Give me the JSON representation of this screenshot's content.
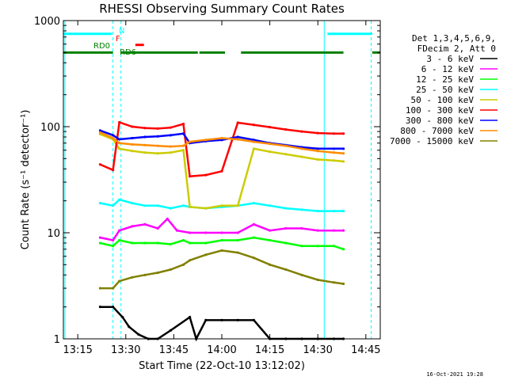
{
  "chart_data": {
    "type": "line",
    "title": "RHESSI Observing Summary Count Rates",
    "xlabel": "Start Time (22-Oct-10 13:12:02)",
    "ylabel": "Count Rate (s⁻¹ detector⁻¹)",
    "y_scale": "log",
    "ylim": [
      1,
      1000
    ],
    "xlim": [
      "13:10:30",
      "14:49:30"
    ],
    "x_ticks": [
      "13:15",
      "13:30",
      "13:45",
      "14:00",
      "14:15",
      "14:30",
      "14:45"
    ],
    "y_ticks": [
      "1",
      "10",
      "100",
      "1000"
    ],
    "footer_timestamp": "16-Oct-2021 19:28",
    "legend_header": [
      "Det 1,3,4,5,6,9,",
      "FDecim 2, Att 0"
    ],
    "grid": false,
    "series": [
      {
        "name": "3 - 6 keV",
        "color": "#000000",
        "x": [
          "13:22",
          "13:26",
          "13:29",
          "13:31",
          "13:34",
          "13:37",
          "13:40",
          "13:44",
          "13:50",
          "13:52",
          "13:55",
          "14:00",
          "14:05",
          "14:10",
          "14:15",
          "14:20",
          "14:25",
          "14:30",
          "14:35",
          "14:38"
        ],
        "y": [
          2.0,
          2.0,
          1.6,
          1.3,
          1.1,
          1.0,
          1.0,
          1.2,
          1.6,
          1.0,
          1.5,
          1.5,
          1.5,
          1.5,
          1.0,
          1.0,
          1.0,
          1.0,
          1.0,
          1.0
        ]
      },
      {
        "name": "6 - 12 keV",
        "color": "#ff00ff",
        "x": [
          "13:22",
          "13:26",
          "13:28",
          "13:32",
          "13:36",
          "13:40",
          "13:43",
          "13:46",
          "13:50",
          "13:55",
          "14:00",
          "14:05",
          "14:10",
          "14:15",
          "14:20",
          "14:25",
          "14:30",
          "14:35",
          "14:38"
        ],
        "y": [
          9.0,
          8.5,
          10.5,
          11.5,
          12.0,
          11.0,
          13.5,
          10.5,
          10.0,
          10.0,
          10.0,
          10.0,
          12.0,
          10.5,
          11.0,
          11.0,
          10.5,
          10.5,
          10.5
        ]
      },
      {
        "name": "12 - 25 keV",
        "color": "#00ff00",
        "x": [
          "13:22",
          "13:26",
          "13:28",
          "13:32",
          "13:36",
          "13:40",
          "13:44",
          "13:48",
          "13:50",
          "13:55",
          "14:00",
          "14:05",
          "14:10",
          "14:15",
          "14:20",
          "14:25",
          "14:30",
          "14:35",
          "14:38"
        ],
        "y": [
          8.0,
          7.5,
          8.5,
          8.0,
          8.0,
          8.0,
          7.8,
          8.5,
          8.0,
          8.0,
          8.5,
          8.5,
          9.0,
          8.5,
          8.0,
          7.5,
          7.5,
          7.5,
          7.0
        ]
      },
      {
        "name": "25 - 50 keV",
        "color": "#00ffff",
        "x": [
          "13:22",
          "13:26",
          "13:28",
          "13:32",
          "13:36",
          "13:40",
          "13:44",
          "13:48",
          "13:50",
          "13:55",
          "14:00",
          "14:05",
          "14:10",
          "14:15",
          "14:20",
          "14:25",
          "14:30",
          "14:35",
          "14:38"
        ],
        "y": [
          19,
          18,
          20.5,
          19,
          18,
          18,
          17,
          18,
          17.5,
          17,
          17.5,
          18,
          19,
          18,
          17,
          16.5,
          16,
          16,
          16
        ]
      },
      {
        "name": "50 - 100 keV",
        "color": "#cccc00",
        "x": [
          "13:22",
          "13:26",
          "13:28",
          "13:32",
          "13:36",
          "13:40",
          "13:44",
          "13:48",
          "13:50",
          "13:55",
          "14:00",
          "14:05",
          "14:10",
          "14:15",
          "14:20",
          "14:25",
          "14:30",
          "14:35",
          "14:38"
        ],
        "y": [
          85,
          76,
          62,
          59,
          57,
          56,
          57,
          60,
          17.5,
          17,
          18,
          18,
          62,
          58,
          55,
          52,
          49,
          48,
          47
        ]
      },
      {
        "name": "100 - 300 keV",
        "color": "#ff0000",
        "x": [
          "13:22",
          "13:26",
          "13:28",
          "13:32",
          "13:36",
          "13:40",
          "13:44",
          "13:48",
          "13:50",
          "13:55",
          "14:00",
          "14:05",
          "14:10",
          "14:15",
          "14:20",
          "14:25",
          "14:30",
          "14:35",
          "14:38"
        ],
        "y": [
          44,
          39,
          110,
          100,
          97,
          96,
          98,
          106,
          34,
          35,
          38,
          109,
          104,
          99,
          94,
          90,
          87,
          86,
          86
        ]
      },
      {
        "name": "300 - 800 keV",
        "color": "#0000ff",
        "x": [
          "13:22",
          "13:26",
          "13:28",
          "13:32",
          "13:36",
          "13:40",
          "13:44",
          "13:48",
          "13:50",
          "13:55",
          "14:00",
          "14:05",
          "14:10",
          "14:15",
          "14:20",
          "14:25",
          "14:30",
          "14:35",
          "14:38"
        ],
        "y": [
          92,
          83,
          76,
          78,
          80,
          81,
          83,
          86,
          70,
          73,
          75,
          80,
          75,
          70,
          67,
          64,
          62,
          62,
          62
        ]
      },
      {
        "name": "800 - 7000 keV",
        "color": "#ff8c00",
        "x": [
          "13:22",
          "13:26",
          "13:28",
          "13:32",
          "13:36",
          "13:40",
          "13:44",
          "13:48",
          "13:50",
          "13:55",
          "14:00",
          "14:05",
          "14:10",
          "14:15",
          "14:20",
          "14:25",
          "14:30",
          "14:35",
          "14:38"
        ],
        "y": [
          88,
          78,
          70,
          68,
          67,
          66,
          65,
          66,
          72,
          75,
          78,
          76,
          72,
          69,
          66,
          62,
          59,
          57,
          56
        ]
      },
      {
        "name": "7000 - 15000 keV",
        "color": "#808000",
        "x": [
          "13:22",
          "13:26",
          "13:28",
          "13:32",
          "13:36",
          "13:40",
          "13:44",
          "13:48",
          "13:50",
          "13:55",
          "14:00",
          "14:05",
          "14:10",
          "14:15",
          "14:20",
          "14:25",
          "14:30",
          "14:35",
          "14:38"
        ],
        "y": [
          3.0,
          3.0,
          3.5,
          3.8,
          4.0,
          4.2,
          4.5,
          5.0,
          5.5,
          6.2,
          6.8,
          6.5,
          5.8,
          5.0,
          4.5,
          4.0,
          3.6,
          3.4,
          3.3
        ]
      }
    ],
    "flag_bars": [
      {
        "label": "N",
        "color": "#00ffff",
        "level": 750,
        "segments": [
          [
            "13:10:30",
            "13:25:40"
          ],
          [
            "14:33:00",
            "14:47:00"
          ]
        ]
      },
      {
        "label": "F",
        "color": "#ff0000",
        "level": 590,
        "segments": [
          [
            "13:33:00",
            "13:35:40"
          ]
        ]
      },
      {
        "label": "RD0",
        "color": "#008000",
        "level": 500,
        "segments": [
          [
            "13:10:30",
            "13:26:00"
          ]
        ]
      },
      {
        "label": "RD6",
        "color": "#008000",
        "level": 500,
        "segments": [
          [
            "13:28:30",
            "13:52:30"
          ],
          [
            "13:53:00",
            "14:01:00"
          ],
          [
            "14:06:00",
            "14:38:00"
          ],
          [
            "14:47:00",
            "14:49:30"
          ]
        ]
      }
    ],
    "vertical_markers": [
      {
        "time": "13:26:00",
        "color": "#00ffff",
        "style": "dashed"
      },
      {
        "time": "13:28:30",
        "color": "#00ffff",
        "style": "dashed"
      },
      {
        "time": "14:32:00",
        "color": "#00ffff",
        "style": "solid"
      },
      {
        "time": "14:46:40",
        "color": "#00ffff",
        "style": "dashed"
      },
      {
        "time": "13:11:00",
        "color": "#00ffff",
        "style": "solid"
      }
    ]
  }
}
